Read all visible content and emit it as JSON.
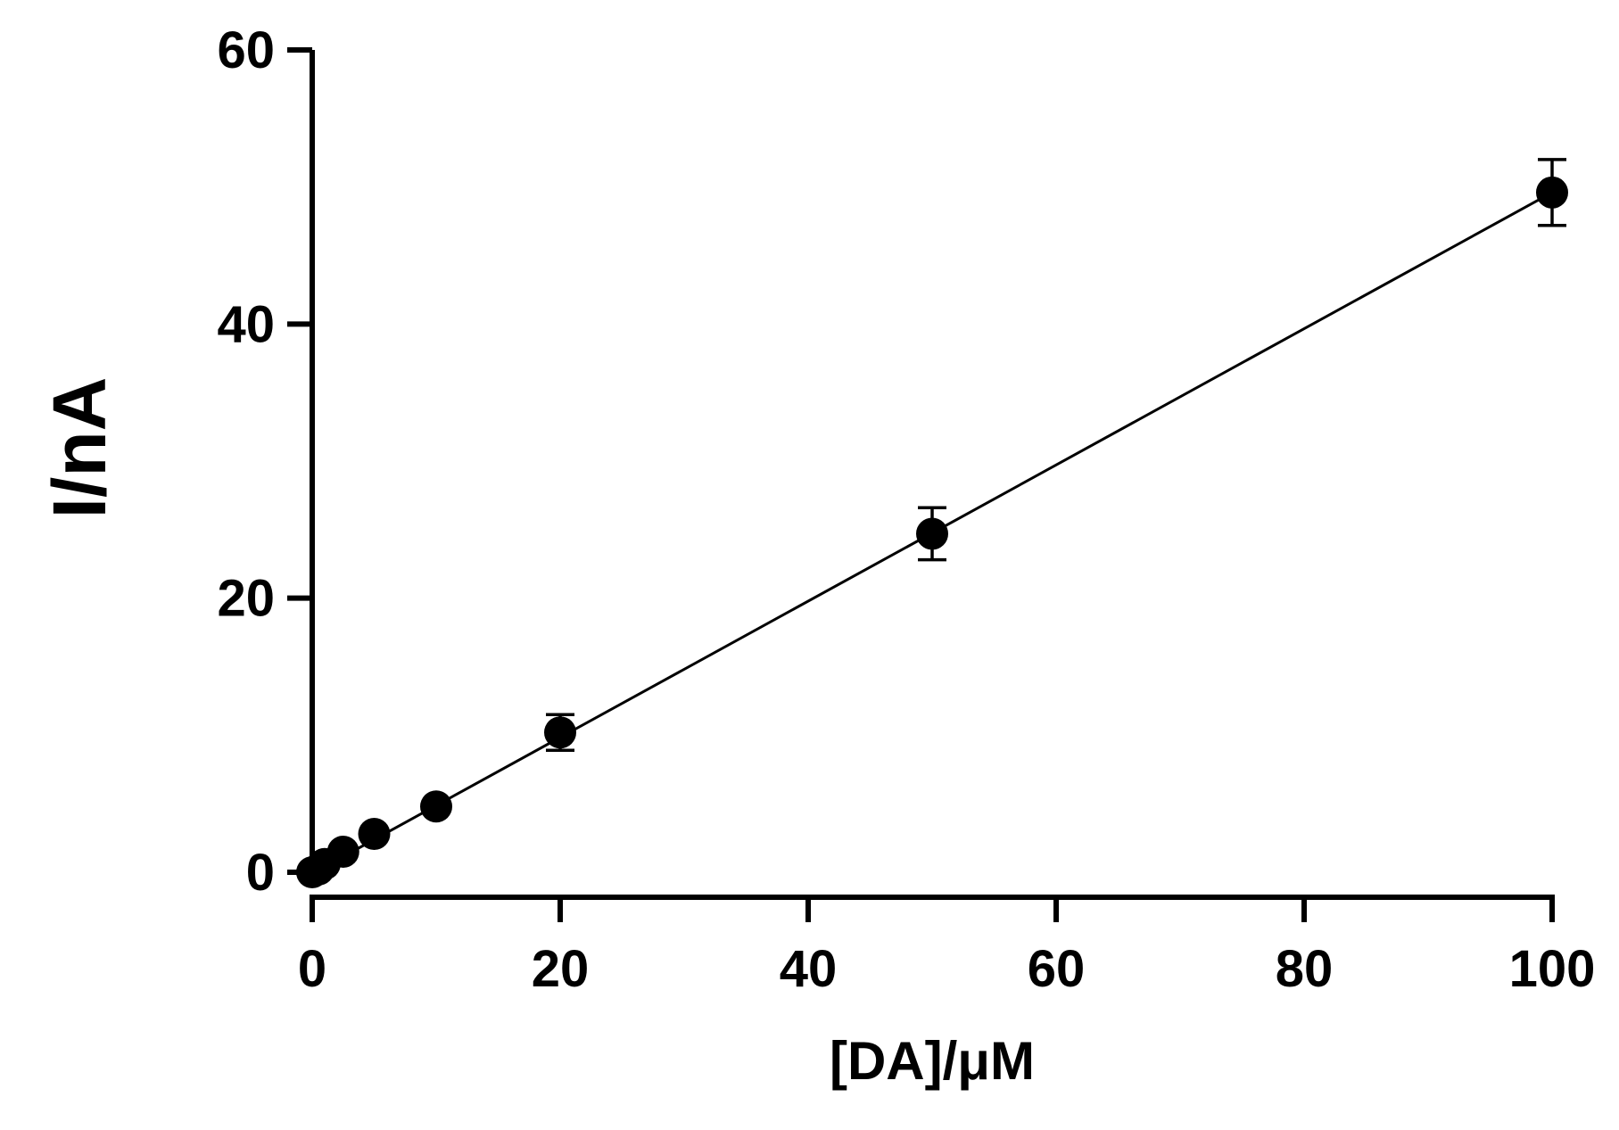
{
  "chart_data": {
    "type": "scatter",
    "title": "",
    "xlabel": "[DA]/μM",
    "ylabel": "I/nA",
    "xlim": [
      0,
      100
    ],
    "ylim": [
      0,
      60
    ],
    "x_ticks": [
      0,
      20,
      40,
      60,
      80,
      100
    ],
    "y_ticks": [
      0,
      20,
      40,
      60
    ],
    "x_tick_labels": [
      "0",
      "20",
      "40",
      "60",
      "80",
      "100"
    ],
    "y_tick_labels": [
      "0",
      "20",
      "40",
      "60"
    ],
    "grid": false,
    "legend": "none",
    "series": [
      {
        "points": [
          {
            "x": 0,
            "y": 0,
            "err": 0
          },
          {
            "x": 0.5,
            "y": 0.2,
            "err": 0
          },
          {
            "x": 1,
            "y": 0.6,
            "err": 0
          },
          {
            "x": 2.5,
            "y": 1.5,
            "err": 0
          },
          {
            "x": 5,
            "y": 2.8,
            "err": 0
          },
          {
            "x": 10,
            "y": 4.8,
            "err": 0
          },
          {
            "x": 20,
            "y": 10.2,
            "err": 1.3
          },
          {
            "x": 50,
            "y": 24.7,
            "err": 1.9
          },
          {
            "x": 100,
            "y": 49.6,
            "err": 2.4
          }
        ]
      }
    ],
    "fit_line": {
      "x": [
        0,
        100
      ],
      "y": [
        -0.1,
        49.6
      ]
    },
    "colors": {
      "marker": "#000000",
      "line": "#000000",
      "axis": "#000000"
    }
  }
}
